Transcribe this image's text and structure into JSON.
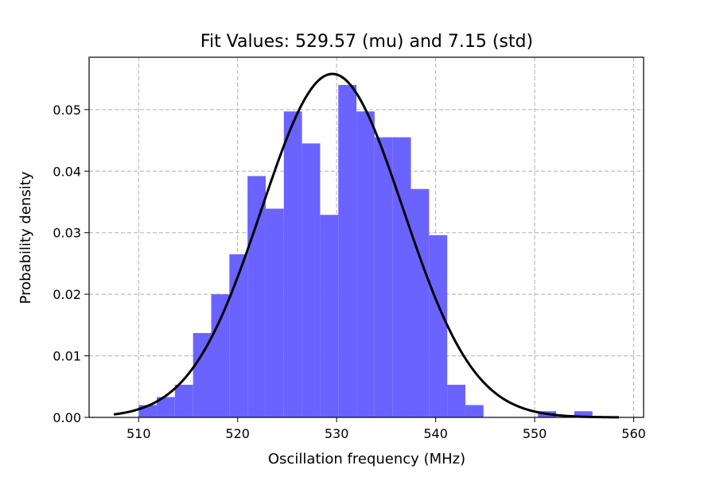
{
  "chart_data": {
    "type": "bar",
    "title": "Fit Values: 529.57 (mu) and 7.15 (std)",
    "xlabel": "Oscillation frequency (MHz)",
    "ylabel": "Probability density",
    "xlim": [
      505,
      561
    ],
    "ylim": [
      0,
      0.0585
    ],
    "xticks": [
      "510",
      "520",
      "530",
      "540",
      "550",
      "560"
    ],
    "yticks": [
      "0.00",
      "0.01",
      "0.02",
      "0.03",
      "0.04",
      "0.05"
    ],
    "grid": true,
    "histogram": {
      "bin_width": 1.833,
      "color": "#6b63ff",
      "bins": [
        {
          "x0": 510.0,
          "x1": 511.833,
          "density": 0.002
        },
        {
          "x0": 511.833,
          "x1": 513.667,
          "density": 0.0033
        },
        {
          "x0": 513.667,
          "x1": 515.5,
          "density": 0.0053
        },
        {
          "x0": 515.5,
          "x1": 517.333,
          "density": 0.0137
        },
        {
          "x0": 517.333,
          "x1": 519.167,
          "density": 0.02
        },
        {
          "x0": 519.167,
          "x1": 521.0,
          "density": 0.0265
        },
        {
          "x0": 521.0,
          "x1": 522.833,
          "density": 0.0392
        },
        {
          "x0": 522.833,
          "x1": 524.667,
          "density": 0.0339
        },
        {
          "x0": 524.667,
          "x1": 526.5,
          "density": 0.0497
        },
        {
          "x0": 526.5,
          "x1": 528.333,
          "density": 0.0445
        },
        {
          "x0": 528.333,
          "x1": 530.167,
          "density": 0.0329
        },
        {
          "x0": 530.167,
          "x1": 532.0,
          "density": 0.054
        },
        {
          "x0": 532.0,
          "x1": 533.833,
          "density": 0.0497
        },
        {
          "x0": 533.833,
          "x1": 535.667,
          "density": 0.0455
        },
        {
          "x0": 535.667,
          "x1": 537.5,
          "density": 0.0455
        },
        {
          "x0": 537.5,
          "x1": 539.333,
          "density": 0.0371
        },
        {
          "x0": 539.333,
          "x1": 541.167,
          "density": 0.0296
        },
        {
          "x0": 541.167,
          "x1": 543.0,
          "density": 0.0053
        },
        {
          "x0": 543.0,
          "x1": 544.833,
          "density": 0.002
        },
        {
          "x0": 550.333,
          "x1": 552.167,
          "density": 0.001
        },
        {
          "x0": 554.0,
          "x1": 555.833,
          "density": 0.001
        }
      ]
    },
    "fit_curve": {
      "type": "line",
      "mu": 529.57,
      "std": 7.15,
      "x_range": [
        507.5,
        558.5
      ],
      "color": "#000000"
    }
  }
}
